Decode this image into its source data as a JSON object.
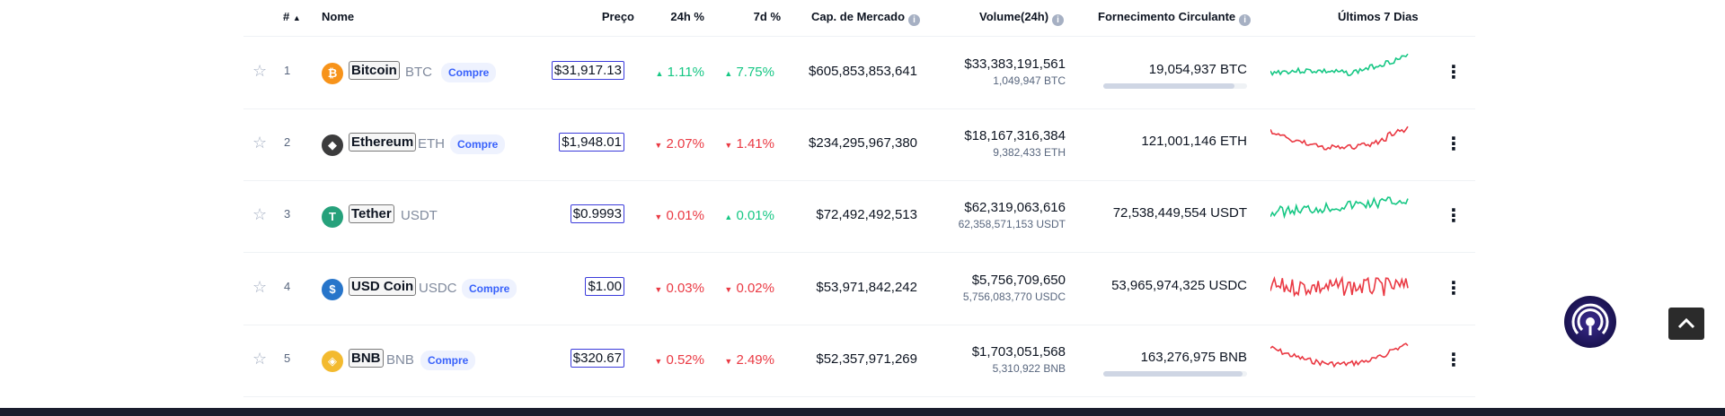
{
  "header": {
    "rank": "#",
    "name": "Nome",
    "price": "Preço",
    "change_24h": "24h %",
    "change_7d": "7d %",
    "market_cap": "Cap. de Mercado",
    "volume": "Volume(24h)",
    "supply": "Fornecimento Circulante",
    "last7": "Últimos 7 Dias"
  },
  "rows": [
    {
      "rank": "1",
      "name": "Bitcoin",
      "symbol": "BTC",
      "buy": "Compre",
      "price": "$31,917.13",
      "change_24h": "1.11%",
      "dir_24h": "up",
      "change_7d": "7.75%",
      "dir_7d": "up",
      "market_cap": "$605,853,853,641",
      "volume": "$33,383,191,561",
      "volume_coin": "1,049,947 BTC",
      "supply": "19,054,937 BTC",
      "supply_fill": 0.91,
      "spark_color": "#16c784",
      "icon_color": "#f7931a",
      "icon_glyph": "₿"
    },
    {
      "rank": "2",
      "name": "Ethereum",
      "symbol": "ETH",
      "buy": "Compre",
      "price": "$1,948.01",
      "change_24h": "2.07%",
      "dir_24h": "down",
      "change_7d": "1.41%",
      "dir_7d": "down",
      "market_cap": "$234,295,967,380",
      "volume": "$18,167,316,384",
      "volume_coin": "9,382,433 ETH",
      "supply": "121,001,146 ETH",
      "spark_color": "#ea3943",
      "icon_color": "#3c3c3d",
      "icon_glyph": "◆"
    },
    {
      "rank": "3",
      "name": "Tether",
      "symbol": "USDT",
      "buy": "",
      "price": "$0.9993",
      "change_24h": "0.01%",
      "dir_24h": "down",
      "change_7d": "0.01%",
      "dir_7d": "up",
      "market_cap": "$72,492,492,513",
      "volume": "$62,319,063,616",
      "volume_coin": "62,358,571,153 USDT",
      "supply": "72,538,449,554 USDT",
      "spark_color": "#16c784",
      "icon_color": "#26a17b",
      "icon_glyph": "T"
    },
    {
      "rank": "4",
      "name": "USD Coin",
      "symbol": "USDC",
      "buy": "Compre",
      "price": "$1.00",
      "change_24h": "0.03%",
      "dir_24h": "down",
      "change_7d": "0.02%",
      "dir_7d": "down",
      "market_cap": "$53,971,842,242",
      "volume": "$5,756,709,650",
      "volume_coin": "5,756,083,770 USDC",
      "supply": "53,965,974,325 USDC",
      "spark_color": "#ea3943",
      "icon_color": "#2775ca",
      "icon_glyph": "$"
    },
    {
      "rank": "5",
      "name": "BNB",
      "symbol": "BNB",
      "buy": "Compre",
      "price": "$320.67",
      "change_24h": "0.52%",
      "dir_24h": "down",
      "change_7d": "2.49%",
      "dir_7d": "down",
      "market_cap": "$52,357,971,269",
      "volume": "$1,703,051,568",
      "volume_coin": "5,310,922 BNB",
      "supply": "163,276,975 BNB",
      "supply_fill": 0.97,
      "spark_color": "#ea3943",
      "icon_color": "#f3ba2f",
      "icon_glyph": "◈"
    }
  ]
}
